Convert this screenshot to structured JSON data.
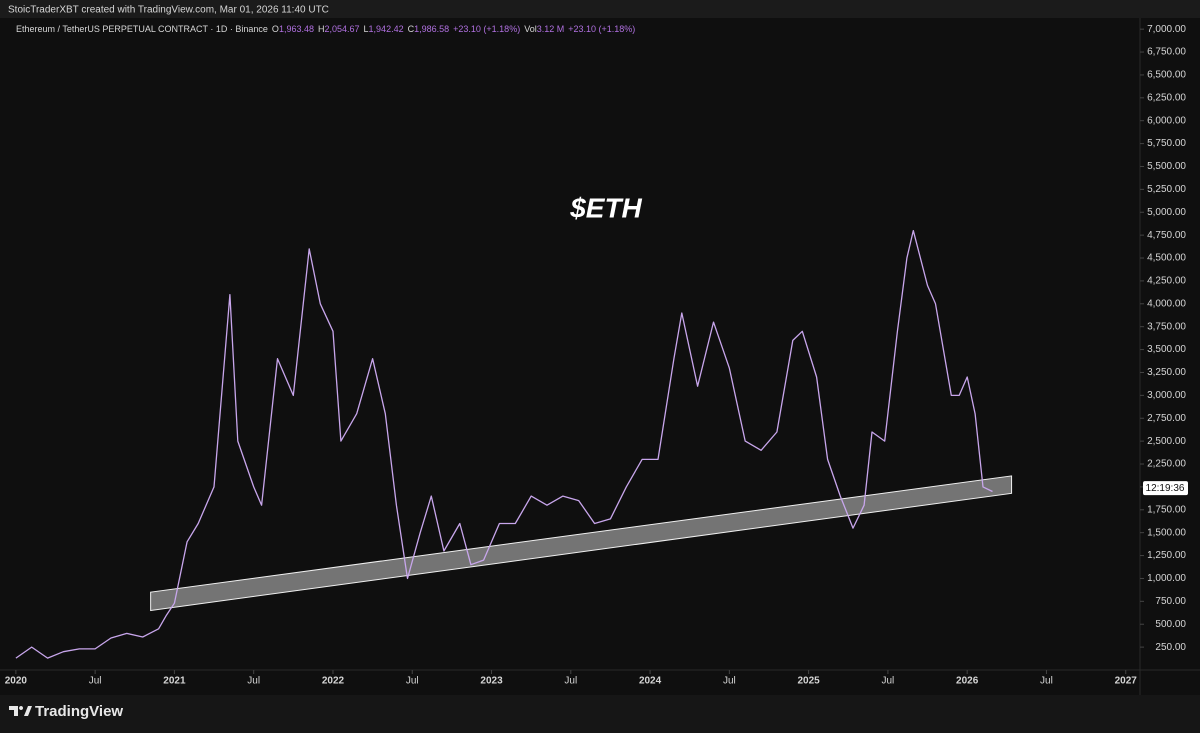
{
  "attribution": "StoicTraderXBT created with TradingView.com, Mar 01, 2026 11:40 UTC",
  "brand": "TradingView",
  "chart_data": {
    "type": "line",
    "title": "$ETH",
    "symbol": "Ethereum / TetherUS PERPETUAL CONTRACT · 1D · Binance",
    "ohlc": [
      {
        "label": "O",
        "value": "1,963.48"
      },
      {
        "label": "H",
        "value": "2,054.67"
      },
      {
        "label": "L",
        "value": "1,942.42"
      },
      {
        "label": "C",
        "value": "1,986.58"
      }
    ],
    "change": "+23.10 (+1.18%)",
    "volume": {
      "label": "Vol",
      "value": "3.12 M",
      "change": "+23.10 (+1.18%)"
    },
    "countdown": "12:19:36",
    "last_price": 1986.58,
    "series": [
      {
        "name": "ETHUSDT",
        "color": "#c8a6ec",
        "x": [
          2020.0,
          2020.1,
          2020.2,
          2020.3,
          2020.4,
          2020.5,
          2020.6,
          2020.7,
          2020.8,
          2020.9,
          2020.95,
          2021.0,
          2021.08,
          2021.15,
          2021.25,
          2021.35,
          2021.4,
          2021.5,
          2021.55,
          2021.65,
          2021.75,
          2021.85,
          2021.92,
          2022.0,
          2022.05,
          2022.15,
          2022.25,
          2022.33,
          2022.4,
          2022.47,
          2022.55,
          2022.62,
          2022.7,
          2022.8,
          2022.87,
          2022.95,
          2023.05,
          2023.15,
          2023.25,
          2023.35,
          2023.45,
          2023.55,
          2023.65,
          2023.75,
          2023.85,
          2023.95,
          2024.05,
          2024.15,
          2024.2,
          2024.3,
          2024.4,
          2024.5,
          2024.6,
          2024.7,
          2024.8,
          2024.9,
          2024.96,
          2025.05,
          2025.12,
          2025.2,
          2025.28,
          2025.35,
          2025.4,
          2025.48,
          2025.56,
          2025.62,
          2025.66,
          2025.75,
          2025.8,
          2025.85,
          2025.9,
          2025.95,
          2026.0,
          2026.05,
          2026.1,
          2026.16
        ],
        "values": [
          130,
          250,
          130,
          200,
          230,
          230,
          350,
          400,
          360,
          450,
          600,
          730,
          1400,
          1600,
          2000,
          4100,
          2500,
          2000,
          1800,
          3400,
          3000,
          4600,
          4000,
          3700,
          2500,
          2800,
          3400,
          2800,
          1800,
          1000,
          1500,
          1900,
          1300,
          1600,
          1150,
          1200,
          1600,
          1600,
          1900,
          1800,
          1900,
          1850,
          1600,
          1650,
          2000,
          2300,
          2300,
          3400,
          3900,
          3100,
          3800,
          3300,
          2500,
          2400,
          2600,
          3600,
          3700,
          3200,
          2300,
          1900,
          1550,
          1800,
          2600,
          2500,
          3700,
          4500,
          4800,
          4200,
          4000,
          3500,
          3000,
          3000,
          3200,
          2800,
          2000,
          1950
        ]
      }
    ],
    "channel": {
      "x": [
        2020.85,
        2026.28
      ],
      "lower": [
        650,
        1930
      ],
      "upper": [
        850,
        2120
      ]
    },
    "xlim": [
      2019.9,
      2027.09
    ],
    "xticks": [
      {
        "value": 2020,
        "label": "2020"
      },
      {
        "value": 2020.5,
        "label": "Jul"
      },
      {
        "value": 2021,
        "label": "2021"
      },
      {
        "value": 2021.5,
        "label": "Jul"
      },
      {
        "value": 2022,
        "label": "2022"
      },
      {
        "value": 2022.5,
        "label": "Jul"
      },
      {
        "value": 2023,
        "label": "2023"
      },
      {
        "value": 2023.5,
        "label": "Jul"
      },
      {
        "value": 2024,
        "label": "2024"
      },
      {
        "value": 2024.5,
        "label": "Jul"
      },
      {
        "value": 2025,
        "label": "2025"
      },
      {
        "value": 2025.5,
        "label": "Jul"
      },
      {
        "value": 2026,
        "label": "2026"
      },
      {
        "value": 2026.5,
        "label": "Jul"
      },
      {
        "value": 2027,
        "label": "2027"
      }
    ],
    "ylim": [
      0,
      7100
    ],
    "yticks": [
      {
        "value": 250,
        "label": "250.00"
      },
      {
        "value": 500,
        "label": "500.00"
      },
      {
        "value": 750,
        "label": "750.00"
      },
      {
        "value": 1000,
        "label": "1,000.00"
      },
      {
        "value": 1250,
        "label": "1,250.00"
      },
      {
        "value": 1500,
        "label": "1,500.00"
      },
      {
        "value": 1750,
        "label": "1,750.00"
      },
      {
        "value": 2000,
        "label": "2,000.00"
      },
      {
        "value": 2250,
        "label": "2,250.00"
      },
      {
        "value": 2500,
        "label": "2,500.00"
      },
      {
        "value": 2750,
        "label": "2,750.00"
      },
      {
        "value": 3000,
        "label": "3,000.00"
      },
      {
        "value": 3250,
        "label": "3,250.00"
      },
      {
        "value": 3500,
        "label": "3,500.00"
      },
      {
        "value": 3750,
        "label": "3,750.00"
      },
      {
        "value": 4000,
        "label": "4,000.00"
      },
      {
        "value": 4250,
        "label": "4,250.00"
      },
      {
        "value": 4500,
        "label": "4,500.00"
      },
      {
        "value": 4750,
        "label": "4,750.00"
      },
      {
        "value": 5000,
        "label": "5,000.00"
      },
      {
        "value": 5250,
        "label": "5,250.00"
      },
      {
        "value": 5500,
        "label": "5,500.00"
      },
      {
        "value": 5750,
        "label": "5,750.00"
      },
      {
        "value": 6000,
        "label": "6,000.00"
      },
      {
        "value": 6250,
        "label": "6,250.00"
      },
      {
        "value": 6500,
        "label": "6,500.00"
      },
      {
        "value": 6750,
        "label": "6,750.00"
      },
      {
        "value": 7000,
        "label": "7,000.00"
      }
    ]
  }
}
